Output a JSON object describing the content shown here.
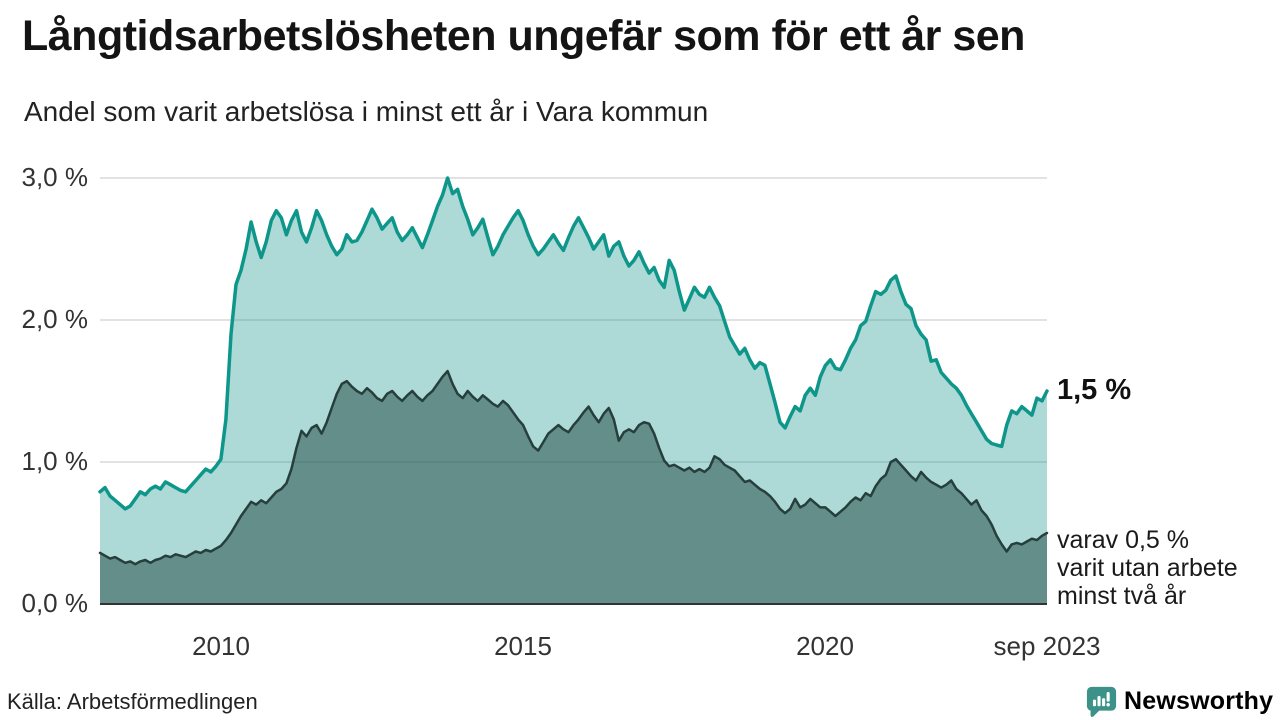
{
  "header": {
    "title": "Långtidsarbetslösheten ungefär som för ett år sen",
    "subtitle": "Andel som varit arbetslösa i minst ett år i Vara kommun"
  },
  "footer": {
    "source": "Källa: Arbetsförmedlingen",
    "brand": "Newsworthy",
    "brand_color": "#3c9188"
  },
  "chart_data": {
    "type": "area",
    "title": "Långtidsarbetslösheten ungefär som för ett år sen",
    "subtitle": "Andel som varit arbetslösa i minst ett år i Vara kommun",
    "unit": "%",
    "frequency": "monthly",
    "x_start": "2008-01",
    "x_end": "2023-09",
    "ylim": [
      0,
      3
    ],
    "grid": true,
    "legend": "none",
    "gridline_color": "#d9d9d9",
    "axis_color": "#333333",
    "yticks": [
      {
        "value": 3,
        "label": "3,0 %"
      },
      {
        "value": 2,
        "label": "2,0 %"
      },
      {
        "value": 1,
        "label": "1,0 %"
      },
      {
        "value": 0,
        "label": "0,0 %"
      }
    ],
    "xticks": [
      {
        "index": 24,
        "label": "2010"
      },
      {
        "index": 84,
        "label": "2015"
      },
      {
        "index": 144,
        "label": "2020"
      },
      {
        "index": 188,
        "label": "sep 2023"
      }
    ],
    "annotations": {
      "latest_total": "1,5 %",
      "latest_secondary_lines": [
        "varav 0,5 %",
        "varit utan arbete",
        "minst två år"
      ]
    },
    "series": [
      {
        "id": "minst-ett-ar",
        "name": "Arbetslösa minst ett år",
        "color": "#0f968a",
        "fill": "rgba(21,150,138,0.35)",
        "values": [
          0.79,
          0.82,
          0.76,
          0.73,
          0.7,
          0.67,
          0.69,
          0.74,
          0.79,
          0.77,
          0.81,
          0.83,
          0.81,
          0.86,
          0.84,
          0.82,
          0.8,
          0.79,
          0.83,
          0.87,
          0.91,
          0.95,
          0.93,
          0.97,
          1.02,
          1.3,
          1.9,
          2.25,
          2.35,
          2.5,
          2.69,
          2.55,
          2.44,
          2.55,
          2.7,
          2.77,
          2.72,
          2.6,
          2.7,
          2.77,
          2.62,
          2.55,
          2.65,
          2.77,
          2.7,
          2.6,
          2.52,
          2.46,
          2.5,
          2.6,
          2.55,
          2.56,
          2.62,
          2.7,
          2.78,
          2.72,
          2.64,
          2.68,
          2.72,
          2.62,
          2.56,
          2.6,
          2.65,
          2.58,
          2.51,
          2.6,
          2.7,
          2.8,
          2.88,
          3.0,
          2.89,
          2.92,
          2.8,
          2.71,
          2.6,
          2.65,
          2.71,
          2.58,
          2.46,
          2.52,
          2.6,
          2.66,
          2.72,
          2.77,
          2.7,
          2.6,
          2.52,
          2.46,
          2.5,
          2.55,
          2.6,
          2.54,
          2.49,
          2.58,
          2.66,
          2.72,
          2.65,
          2.58,
          2.5,
          2.55,
          2.6,
          2.45,
          2.52,
          2.55,
          2.45,
          2.38,
          2.42,
          2.48,
          2.4,
          2.33,
          2.37,
          2.28,
          2.23,
          2.42,
          2.35,
          2.2,
          2.07,
          2.15,
          2.23,
          2.18,
          2.16,
          2.23,
          2.16,
          2.1,
          1.99,
          1.88,
          1.82,
          1.76,
          1.8,
          1.72,
          1.66,
          1.7,
          1.68,
          1.55,
          1.42,
          1.28,
          1.24,
          1.32,
          1.39,
          1.36,
          1.47,
          1.52,
          1.47,
          1.6,
          1.68,
          1.72,
          1.66,
          1.65,
          1.72,
          1.8,
          1.86,
          1.96,
          1.99,
          2.1,
          2.2,
          2.18,
          2.21,
          2.28,
          2.31,
          2.2,
          2.11,
          2.08,
          1.96,
          1.9,
          1.86,
          1.71,
          1.72,
          1.63,
          1.59,
          1.55,
          1.52,
          1.47,
          1.4,
          1.34,
          1.28,
          1.22,
          1.16,
          1.13,
          1.12,
          1.11,
          1.26,
          1.36,
          1.34,
          1.39,
          1.36,
          1.33,
          1.45,
          1.43,
          1.5
        ]
      },
      {
        "id": "minst-tva-ar",
        "name": "Arbetslösa minst två år",
        "color": "#263f3c",
        "fill": "rgba(40,80,74,0.55)",
        "values": [
          0.36,
          0.34,
          0.32,
          0.33,
          0.31,
          0.29,
          0.3,
          0.28,
          0.3,
          0.31,
          0.29,
          0.31,
          0.32,
          0.34,
          0.33,
          0.35,
          0.34,
          0.33,
          0.35,
          0.37,
          0.36,
          0.38,
          0.37,
          0.39,
          0.41,
          0.45,
          0.5,
          0.56,
          0.62,
          0.67,
          0.72,
          0.7,
          0.73,
          0.71,
          0.75,
          0.79,
          0.81,
          0.85,
          0.95,
          1.1,
          1.22,
          1.18,
          1.24,
          1.26,
          1.2,
          1.28,
          1.38,
          1.48,
          1.55,
          1.57,
          1.53,
          1.5,
          1.48,
          1.52,
          1.49,
          1.45,
          1.43,
          1.48,
          1.5,
          1.46,
          1.43,
          1.47,
          1.5,
          1.46,
          1.43,
          1.47,
          1.5,
          1.55,
          1.6,
          1.64,
          1.55,
          1.48,
          1.45,
          1.5,
          1.46,
          1.43,
          1.47,
          1.44,
          1.41,
          1.39,
          1.43,
          1.4,
          1.35,
          1.3,
          1.26,
          1.18,
          1.11,
          1.08,
          1.14,
          1.2,
          1.23,
          1.26,
          1.23,
          1.21,
          1.26,
          1.3,
          1.35,
          1.39,
          1.33,
          1.28,
          1.34,
          1.38,
          1.3,
          1.15,
          1.21,
          1.23,
          1.21,
          1.26,
          1.28,
          1.27,
          1.2,
          1.1,
          1.01,
          0.97,
          0.98,
          0.96,
          0.94,
          0.96,
          0.93,
          0.95,
          0.93,
          0.96,
          1.04,
          1.02,
          0.98,
          0.96,
          0.94,
          0.9,
          0.86,
          0.87,
          0.84,
          0.81,
          0.79,
          0.76,
          0.72,
          0.67,
          0.64,
          0.67,
          0.74,
          0.68,
          0.7,
          0.74,
          0.71,
          0.68,
          0.68,
          0.65,
          0.62,
          0.65,
          0.68,
          0.72,
          0.75,
          0.73,
          0.78,
          0.76,
          0.83,
          0.88,
          0.91,
          1.0,
          1.02,
          0.98,
          0.94,
          0.9,
          0.87,
          0.93,
          0.89,
          0.86,
          0.84,
          0.82,
          0.84,
          0.87,
          0.81,
          0.78,
          0.74,
          0.7,
          0.73,
          0.66,
          0.62,
          0.56,
          0.48,
          0.42,
          0.37,
          0.42,
          0.43,
          0.42,
          0.44,
          0.46,
          0.45,
          0.48,
          0.5
        ]
      }
    ]
  }
}
